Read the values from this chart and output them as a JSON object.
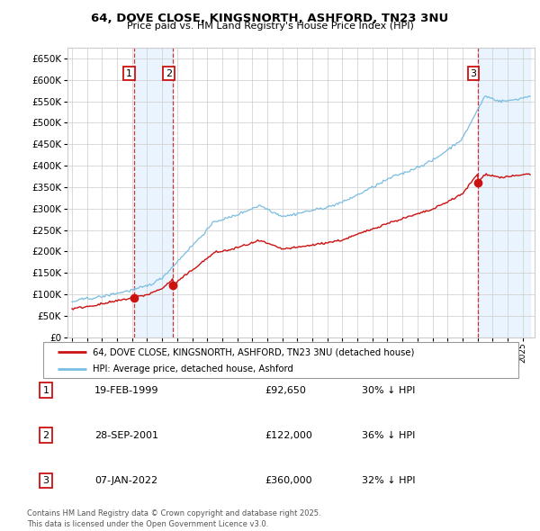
{
  "title": "64, DOVE CLOSE, KINGSNORTH, ASHFORD, TN23 3NU",
  "subtitle": "Price paid vs. HM Land Registry's House Price Index (HPI)",
  "ylim": [
    0,
    675000
  ],
  "ytick_vals": [
    0,
    50000,
    100000,
    150000,
    200000,
    250000,
    300000,
    350000,
    400000,
    450000,
    500000,
    550000,
    600000,
    650000
  ],
  "hpi_color": "#7bbde0",
  "price_color": "#cc1111",
  "vline_color": "#cc1111",
  "shade_color": "#ddeeff",
  "sale_dates": [
    1999.12,
    2001.74,
    2022.03
  ],
  "sale_prices": [
    92650,
    122000,
    360000
  ],
  "legend_entries": [
    "64, DOVE CLOSE, KINGSNORTH, ASHFORD, TN23 3NU (detached house)",
    "HPI: Average price, detached house, Ashford"
  ],
  "table_entries": [
    {
      "num": "1",
      "date": "19-FEB-1999",
      "price": "£92,650",
      "note": "30% ↓ HPI"
    },
    {
      "num": "2",
      "date": "28-SEP-2001",
      "price": "£122,000",
      "note": "36% ↓ HPI"
    },
    {
      "num": "3",
      "date": "07-JAN-2022",
      "price": "£360,000",
      "note": "32% ↓ HPI"
    }
  ],
  "footer": "Contains HM Land Registry data © Crown copyright and database right 2025.\nThis data is licensed under the Open Government Licence v3.0.",
  "bg_color": "#ffffff",
  "plot_bg_color": "#ffffff",
  "grid_color": "#cccccc"
}
